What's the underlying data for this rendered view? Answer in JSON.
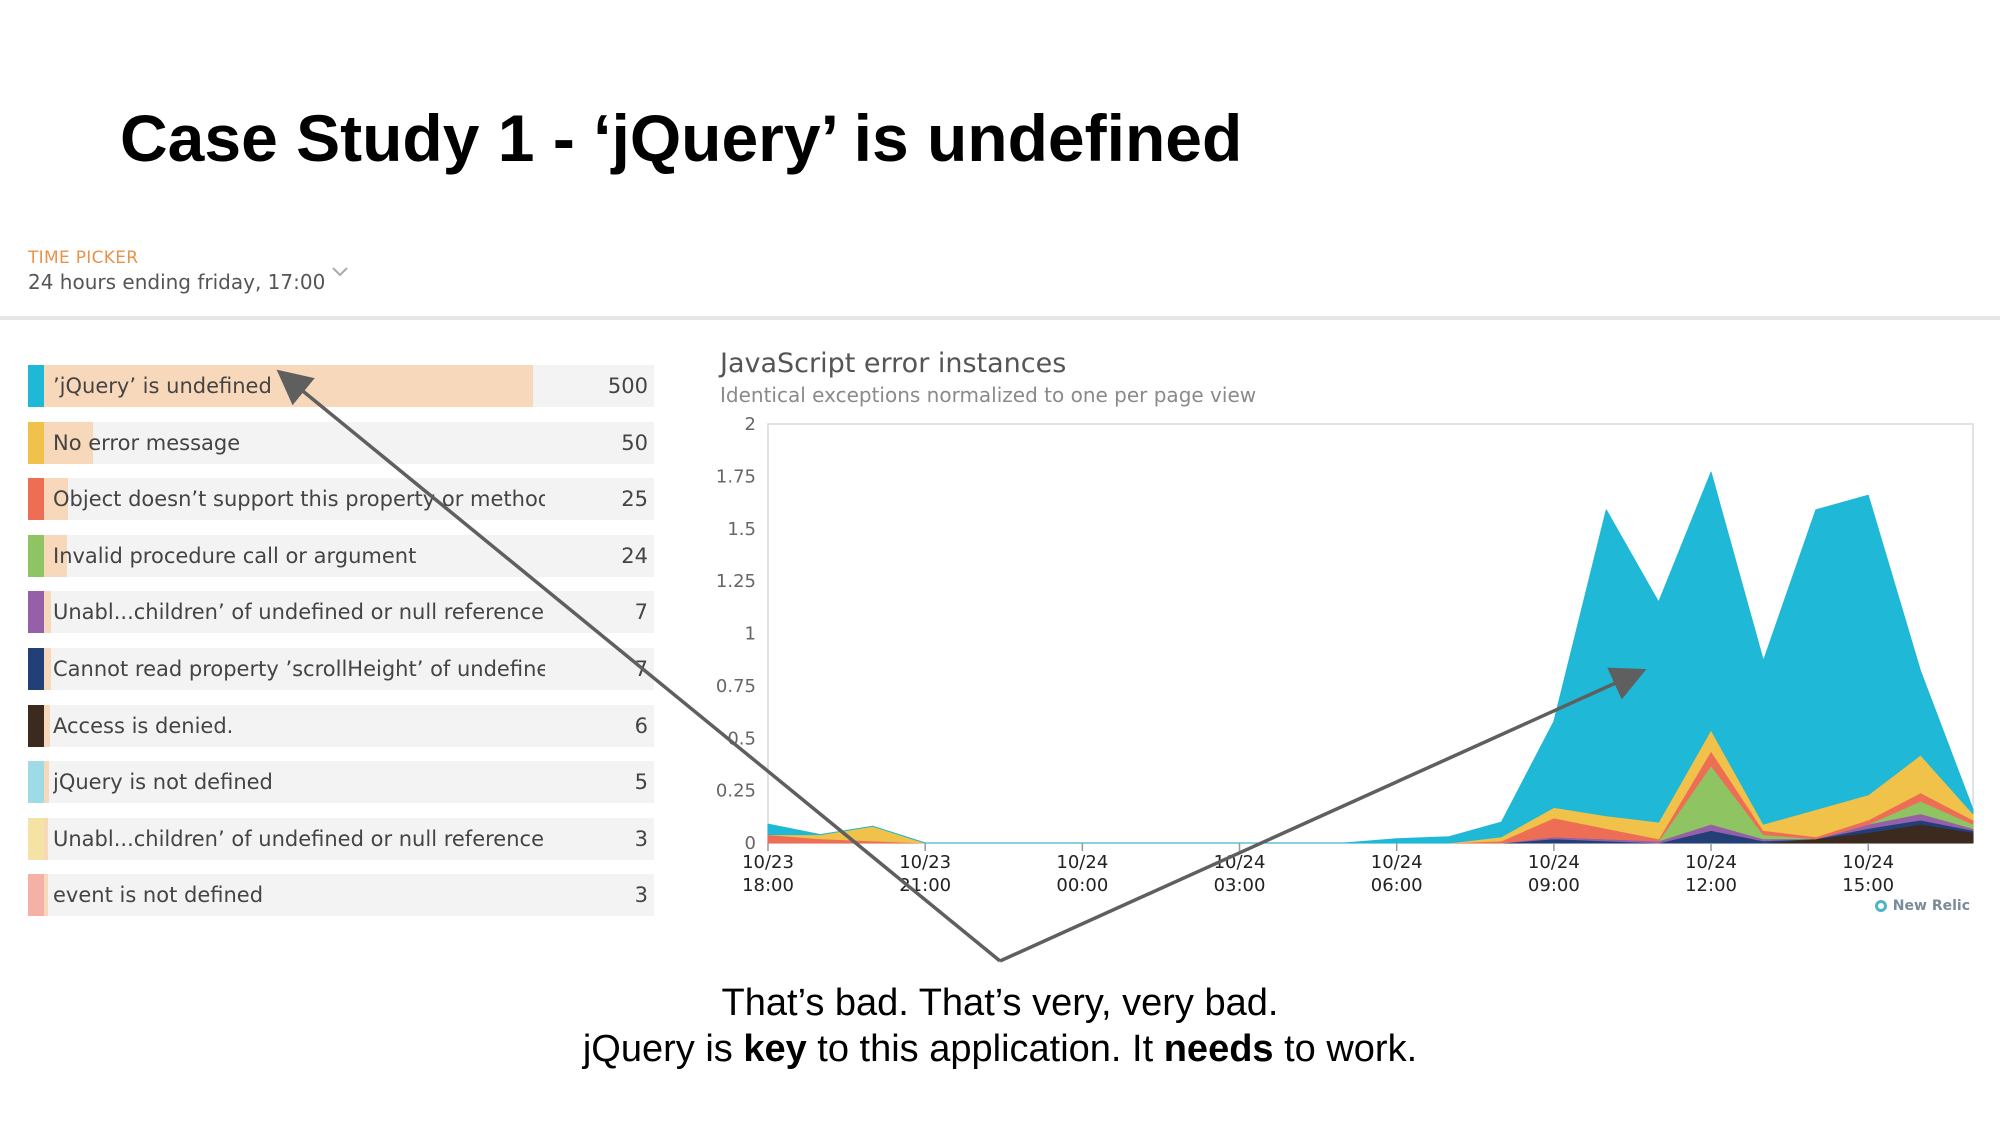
{
  "slide": {
    "title": "Case Study 1 - ‘jQuery’ is undefined",
    "caption_line1": "That’s bad. That’s very, very bad.",
    "caption_line2": {
      "part1": "jQuery is ",
      "bold1": "key",
      "part2": " to this application. It ",
      "bold2": "needs",
      "part3": " to work."
    }
  },
  "time_picker": {
    "label": "TIME PICKER",
    "value": "24 hours ending friday, 17:00",
    "icon": "chevron-down-icon"
  },
  "errors": {
    "max": 500,
    "items": [
      {
        "label": "’jQuery’ is undefined",
        "count": 500,
        "color": "#1fb8d6"
      },
      {
        "label": "No error message",
        "count": 50,
        "color": "#f1c24a"
      },
      {
        "label": "Object doesn’t support this property or method",
        "count": 25,
        "color": "#ee6e55"
      },
      {
        "label": "Invalid procedure call or argument",
        "count": 24,
        "color": "#8ec462"
      },
      {
        "label": "Unabl...children’ of undefined or null reference",
        "count": 7,
        "color": "#9560a8"
      },
      {
        "label": "Cannot read property ’scrollHeight’ of undefined",
        "count": 7,
        "color": "#233f78"
      },
      {
        "label": "Access is denied.",
        "count": 6,
        "color": "#3d2a1f"
      },
      {
        "label": "jQuery is not defined",
        "count": 5,
        "color": "#9fdbe6"
      },
      {
        "label": "Unabl...children’ of undefined or null reference",
        "count": 3,
        "color": "#f5e3a6"
      },
      {
        "label": "event is not defined",
        "count": 3,
        "color": "#f4b2a7"
      }
    ]
  },
  "chart": {
    "title": "JavaScript error instances",
    "subtitle": "Identical exceptions normalized to one per page view",
    "brand": "New Relic"
  },
  "chart_data": {
    "type": "area",
    "stacked": true,
    "ylim": [
      0,
      2
    ],
    "yticks": [
      "0",
      "0.25",
      "0.5",
      "0.75",
      "1",
      "1.25",
      "1.5",
      "1.75",
      "2"
    ],
    "xlim": [
      0,
      23
    ],
    "xticks": [
      {
        "x": 0,
        "line1": "10/23",
        "line2": "18:00"
      },
      {
        "x": 3,
        "line1": "10/23",
        "line2": "21:00"
      },
      {
        "x": 6,
        "line1": "10/24",
        "line2": "00:00"
      },
      {
        "x": 9,
        "line1": "10/24",
        "line2": "03:00"
      },
      {
        "x": 12,
        "line1": "10/24",
        "line2": "06:00"
      },
      {
        "x": 15,
        "line1": "10/24",
        "line2": "09:00"
      },
      {
        "x": 18,
        "line1": "10/24",
        "line2": "12:00"
      },
      {
        "x": 21,
        "line1": "10/24",
        "line2": "15:00"
      }
    ],
    "grid": false,
    "x": [
      0,
      1,
      2,
      3,
      4,
      5,
      6,
      7,
      8,
      9,
      10,
      11,
      12,
      13,
      14,
      15,
      16,
      17,
      18,
      19,
      20,
      21,
      22,
      23
    ],
    "series": [
      {
        "color": "#3d2a1f",
        "values": [
          0,
          0,
          0,
          0,
          0,
          0,
          0,
          0,
          0,
          0,
          0,
          0,
          0,
          0,
          0,
          0,
          0,
          0,
          0,
          0,
          0.02,
          0.05,
          0.09,
          0.05
        ]
      },
      {
        "color": "#233f78",
        "values": [
          0,
          0,
          0,
          0,
          0,
          0,
          0,
          0,
          0,
          0,
          0,
          0,
          0,
          0,
          0,
          0.02,
          0.01,
          0,
          0.06,
          0.01,
          0,
          0.02,
          0.02,
          0.01
        ]
      },
      {
        "color": "#9560a8",
        "values": [
          0,
          0,
          0,
          0,
          0,
          0,
          0,
          0,
          0,
          0,
          0,
          0,
          0,
          0,
          0,
          0.01,
          0.01,
          0.01,
          0.03,
          0.01,
          0,
          0.02,
          0.03,
          0.01
        ]
      },
      {
        "color": "#8ec462",
        "values": [
          0,
          0,
          0,
          0,
          0,
          0,
          0,
          0,
          0,
          0,
          0,
          0,
          0,
          0,
          0,
          0,
          0,
          0,
          0.28,
          0.02,
          0,
          0,
          0.06,
          0.02
        ]
      },
      {
        "color": "#ee6e55",
        "values": [
          0.04,
          0.02,
          0.01,
          0,
          0,
          0,
          0,
          0,
          0,
          0,
          0,
          0,
          0,
          0,
          0.01,
          0.09,
          0.05,
          0.01,
          0.07,
          0.02,
          0.01,
          0.02,
          0.04,
          0.02
        ]
      },
      {
        "color": "#f1c24a",
        "values": [
          0,
          0.02,
          0.07,
          0,
          0,
          0,
          0,
          0,
          0,
          0,
          0,
          0,
          0,
          0,
          0.02,
          0.05,
          0.06,
          0.08,
          0.1,
          0.03,
          0.13,
          0.12,
          0.18,
          0.03
        ]
      },
      {
        "color": "#1fb8d6",
        "values": [
          0.05,
          0,
          0,
          0,
          0,
          0,
          0,
          0,
          0,
          0,
          0,
          0,
          0.02,
          0.03,
          0.07,
          0.41,
          1.46,
          1.05,
          1.23,
          0.78,
          1.43,
          1.43,
          0.4,
          0.02
        ]
      }
    ]
  }
}
